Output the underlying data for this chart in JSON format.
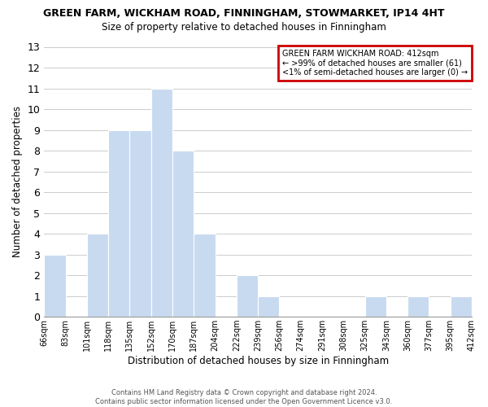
{
  "title": "GREEN FARM, WICKHAM ROAD, FINNINGHAM, STOWMARKET, IP14 4HT",
  "subtitle": "Size of property relative to detached houses in Finningham",
  "xlabel": "Distribution of detached houses by size in Finningham",
  "ylabel": "Number of detached properties",
  "bin_labels": [
    "66sqm",
    "83sqm",
    "101sqm",
    "118sqm",
    "135sqm",
    "152sqm",
    "170sqm",
    "187sqm",
    "204sqm",
    "222sqm",
    "239sqm",
    "256sqm",
    "274sqm",
    "291sqm",
    "308sqm",
    "325sqm",
    "343sqm",
    "360sqm",
    "377sqm",
    "395sqm",
    "412sqm"
  ],
  "bar_heights": [
    3,
    0,
    4,
    9,
    9,
    11,
    8,
    4,
    0,
    2,
    1,
    0,
    0,
    0,
    0,
    1,
    0,
    1,
    0,
    1
  ],
  "bar_color": "#c8daf0",
  "ylim": [
    0,
    13
  ],
  "yticks": [
    0,
    1,
    2,
    3,
    4,
    5,
    6,
    7,
    8,
    9,
    10,
    11,
    12,
    13
  ],
  "legend_title": "GREEN FARM WICKHAM ROAD: 412sqm",
  "legend_line1": "← >99% of detached houses are smaller (61)",
  "legend_line2": "<1% of semi-detached houses are larger (0) →",
  "legend_box_color": "#cc0000",
  "grid_color": "#cccccc",
  "footer_line1": "Contains HM Land Registry data © Crown copyright and database right 2024.",
  "footer_line2": "Contains public sector information licensed under the Open Government Licence v3.0."
}
